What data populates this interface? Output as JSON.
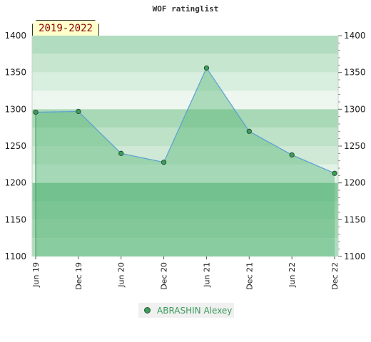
{
  "chart_data": {
    "type": "area",
    "title": "WOF ratinglist",
    "period_label": "2019-2022",
    "categories": [
      "Jun 19",
      "Dec 19",
      "Jun 20",
      "Dec 20",
      "Jun 21",
      "Dec 21",
      "Jun 22",
      "Dec 22"
    ],
    "series": [
      {
        "name": "ABRASHIN Alexey",
        "values": [
          1296,
          1297,
          1240,
          1228,
          1356,
          1270,
          1238,
          1213
        ]
      }
    ],
    "ylim": [
      1100,
      1400
    ],
    "yticks": [
      1100,
      1150,
      1200,
      1250,
      1300,
      1350,
      1400
    ],
    "ytick_labels": [
      "1100",
      "1150",
      "1200",
      "1250",
      "1300",
      "1350",
      "1400"
    ],
    "grid": false,
    "legend_position": "bottom",
    "colors": {
      "line": "#5a9fd4",
      "fill": "#5cb87a",
      "marker": "#3e9b5c",
      "band_dark": "#88c99e",
      "band_light": "#e8f4ec"
    }
  }
}
